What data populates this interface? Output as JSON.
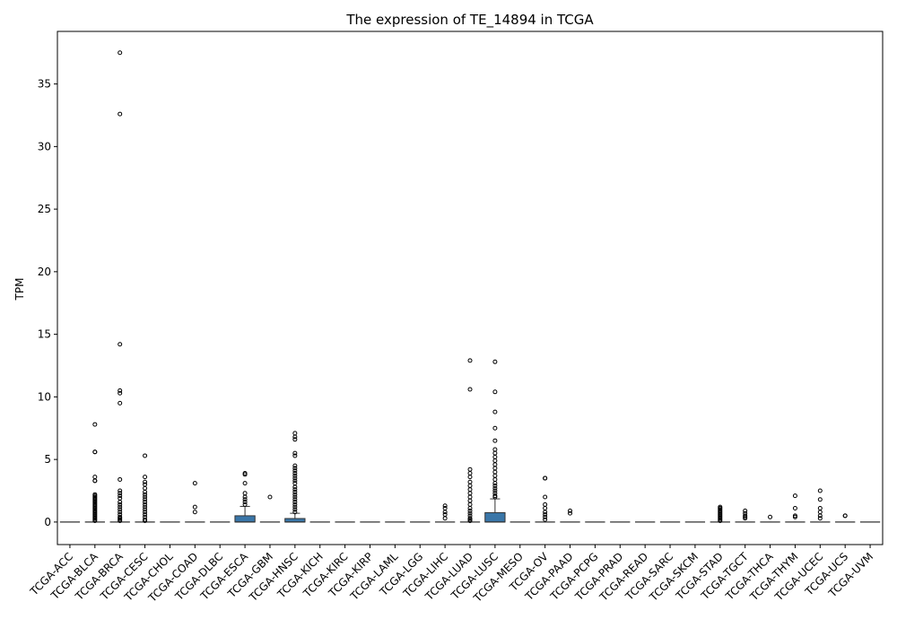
{
  "chart_data": {
    "type": "box",
    "title": "The expression of TE_14894 in TCGA",
    "xlabel": "",
    "ylabel": "TPM",
    "ylim": [
      -1.8,
      39.2
    ],
    "yticks": [
      0,
      5,
      10,
      15,
      20,
      25,
      30,
      35
    ],
    "grid": false,
    "box_color": "#3a76a8",
    "categories": [
      "TCGA-ACC",
      "TCGA-BLCA",
      "TCGA-BRCA",
      "TCGA-CESC",
      "TCGA-CHOL",
      "TCGA-COAD",
      "TCGA-DLBC",
      "TCGA-ESCA",
      "TCGA-GBM",
      "TCGA-HNSC",
      "TCGA-KICH",
      "TCGA-KIRC",
      "TCGA-KIRP",
      "TCGA-LAML",
      "TCGA-LGG",
      "TCGA-LIHC",
      "TCGA-LUAD",
      "TCGA-LUSC",
      "TCGA-MESO",
      "TCGA-OV",
      "TCGA-PAAD",
      "TCGA-PCPG",
      "TCGA-PRAD",
      "TCGA-READ",
      "TCGA-SARC",
      "TCGA-SKCM",
      "TCGA-STAD",
      "TCGA-TGCT",
      "TCGA-THCA",
      "TCGA-THYM",
      "TCGA-UCEC",
      "TCGA-UCS",
      "TCGA-UVM"
    ],
    "boxes": [
      {
        "q1": 0,
        "median": 0,
        "q3": 0,
        "whisker_low": 0,
        "whisker_high": 0,
        "outliers": []
      },
      {
        "q1": 0,
        "median": 0,
        "q3": 0,
        "whisker_low": 0,
        "whisker_high": 0,
        "outliers": [
          7.8,
          5.6,
          5.6,
          3.6,
          3.3,
          3.3,
          2.2,
          2.1,
          2.0,
          1.9,
          1.8,
          1.7,
          1.6,
          1.5,
          1.4,
          1.3,
          1.2,
          1.1,
          1.0,
          0.9,
          0.8,
          0.7,
          0.6,
          0.5,
          0.4,
          0.3,
          0.2,
          0.1
        ]
      },
      {
        "q1": 0,
        "median": 0,
        "q3": 0,
        "whisker_low": 0,
        "whisker_high": 0,
        "outliers": [
          37.5,
          32.6,
          14.2,
          10.5,
          10.3,
          9.5,
          3.4,
          2.5,
          2.3,
          2.1,
          1.9,
          1.6,
          1.4,
          1.2,
          1.0,
          0.8,
          0.6,
          0.4,
          0.3,
          0.2,
          0.1
        ]
      },
      {
        "q1": 0,
        "median": 0,
        "q3": 0,
        "whisker_low": 0,
        "whisker_high": 0,
        "outliers": [
          5.3,
          3.6,
          3.2,
          3.0,
          2.7,
          2.4,
          2.2,
          2.0,
          1.8,
          1.6,
          1.4,
          1.2,
          1.0,
          0.8,
          0.6,
          0.4,
          0.2,
          0.1
        ]
      },
      {
        "q1": 0,
        "median": 0,
        "q3": 0,
        "whisker_low": 0,
        "whisker_high": 0,
        "outliers": []
      },
      {
        "q1": 0,
        "median": 0,
        "q3": 0,
        "whisker_low": 0,
        "whisker_high": 0,
        "outliers": [
          3.1,
          1.2,
          0.8
        ]
      },
      {
        "q1": 0,
        "median": 0,
        "q3": 0,
        "whisker_low": 0,
        "whisker_high": 0,
        "outliers": []
      },
      {
        "q1": 0,
        "median": 0,
        "q3": 0.5,
        "whisker_low": 0,
        "whisker_high": 1.25,
        "outliers": [
          3.9,
          3.8,
          3.1,
          2.3,
          2.0,
          1.8,
          1.6,
          1.4
        ]
      },
      {
        "q1": 0,
        "median": 0,
        "q3": 0,
        "whisker_low": 0,
        "whisker_high": 0,
        "outliers": [
          2.0
        ]
      },
      {
        "q1": 0,
        "median": 0,
        "q3": 0.28,
        "whisker_low": 0,
        "whisker_high": 0.7,
        "outliers": [
          7.1,
          6.8,
          6.6,
          5.5,
          5.3,
          4.5,
          4.3,
          4.1,
          3.9,
          3.7,
          3.5,
          3.3,
          3.1,
          2.8,
          2.6,
          2.4,
          2.2,
          2.0,
          1.8,
          1.6,
          1.4,
          1.2,
          1.0,
          0.8
        ]
      },
      {
        "q1": 0,
        "median": 0,
        "q3": 0,
        "whisker_low": 0,
        "whisker_high": 0,
        "outliers": []
      },
      {
        "q1": 0,
        "median": 0,
        "q3": 0,
        "whisker_low": 0,
        "whisker_high": 0,
        "outliers": []
      },
      {
        "q1": 0,
        "median": 0,
        "q3": 0,
        "whisker_low": 0,
        "whisker_high": 0,
        "outliers": []
      },
      {
        "q1": 0,
        "median": 0,
        "q3": 0,
        "whisker_low": 0,
        "whisker_high": 0,
        "outliers": []
      },
      {
        "q1": 0,
        "median": 0,
        "q3": 0,
        "whisker_low": 0,
        "whisker_high": 0,
        "outliers": []
      },
      {
        "q1": 0,
        "median": 0,
        "q3": 0,
        "whisker_low": 0,
        "whisker_high": 0,
        "outliers": [
          1.3,
          1.1,
          0.8,
          0.6,
          0.3
        ]
      },
      {
        "q1": 0,
        "median": 0,
        "q3": 0,
        "whisker_low": 0,
        "whisker_high": 0,
        "outliers": [
          12.9,
          10.6,
          4.2,
          3.9,
          3.6,
          3.2,
          2.9,
          2.6,
          2.3,
          2.0,
          1.7,
          1.4,
          1.1,
          0.9,
          0.7,
          0.5,
          0.3,
          0.2,
          0.1
        ]
      },
      {
        "q1": 0,
        "median": 0,
        "q3": 0.75,
        "whisker_low": 0,
        "whisker_high": 1.85,
        "outliers": [
          12.8,
          10.4,
          8.8,
          7.5,
          6.5,
          5.8,
          5.5,
          5.2,
          4.9,
          4.6,
          4.3,
          4.0,
          3.7,
          3.4,
          3.1,
          2.9,
          2.7,
          2.5,
          2.3,
          2.1,
          2.0
        ]
      },
      {
        "q1": 0,
        "median": 0,
        "q3": 0,
        "whisker_low": 0,
        "whisker_high": 0,
        "outliers": []
      },
      {
        "q1": 0,
        "median": 0,
        "q3": 0,
        "whisker_low": 0,
        "whisker_high": 0,
        "outliers": [
          3.5,
          3.5,
          2.0,
          1.4,
          1.1,
          0.8,
          0.6,
          0.4,
          0.2
        ]
      },
      {
        "q1": 0,
        "median": 0,
        "q3": 0,
        "whisker_low": 0,
        "whisker_high": 0,
        "outliers": [
          0.9,
          0.7
        ]
      },
      {
        "q1": 0,
        "median": 0,
        "q3": 0,
        "whisker_low": 0,
        "whisker_high": 0,
        "outliers": []
      },
      {
        "q1": 0,
        "median": 0,
        "q3": 0,
        "whisker_low": 0,
        "whisker_high": 0,
        "outliers": []
      },
      {
        "q1": 0,
        "median": 0,
        "q3": 0,
        "whisker_low": 0,
        "whisker_high": 0,
        "outliers": []
      },
      {
        "q1": 0,
        "median": 0,
        "q3": 0,
        "whisker_low": 0,
        "whisker_high": 0,
        "outliers": []
      },
      {
        "q1": 0,
        "median": 0,
        "q3": 0,
        "whisker_low": 0,
        "whisker_high": 0,
        "outliers": []
      },
      {
        "q1": 0,
        "median": 0,
        "q3": 0,
        "whisker_low": 0,
        "whisker_high": 0,
        "outliers": [
          1.2,
          1.1,
          1.0,
          0.9,
          0.8,
          0.7,
          0.6,
          0.5,
          0.4,
          0.3,
          0.2,
          0.1
        ]
      },
      {
        "q1": 0,
        "median": 0,
        "q3": 0,
        "whisker_low": 0,
        "whisker_high": 0,
        "outliers": [
          0.9,
          0.7,
          0.5,
          0.4,
          0.3
        ]
      },
      {
        "q1": 0,
        "median": 0,
        "q3": 0,
        "whisker_low": 0,
        "whisker_high": 0,
        "outliers": [
          0.4
        ]
      },
      {
        "q1": 0,
        "median": 0,
        "q3": 0,
        "whisker_low": 0,
        "whisker_high": 0,
        "outliers": [
          2.1,
          1.1,
          0.5,
          0.4
        ]
      },
      {
        "q1": 0,
        "median": 0,
        "q3": 0,
        "whisker_low": 0,
        "whisker_high": 0,
        "outliers": [
          2.5,
          1.8,
          1.1,
          0.8,
          0.5,
          0.3
        ]
      },
      {
        "q1": 0,
        "median": 0,
        "q3": 0,
        "whisker_low": 0,
        "whisker_high": 0,
        "outliers": [
          0.5,
          0.5
        ]
      },
      {
        "q1": 0,
        "median": 0,
        "q3": 0,
        "whisker_low": 0,
        "whisker_high": 0,
        "outliers": []
      }
    ]
  }
}
